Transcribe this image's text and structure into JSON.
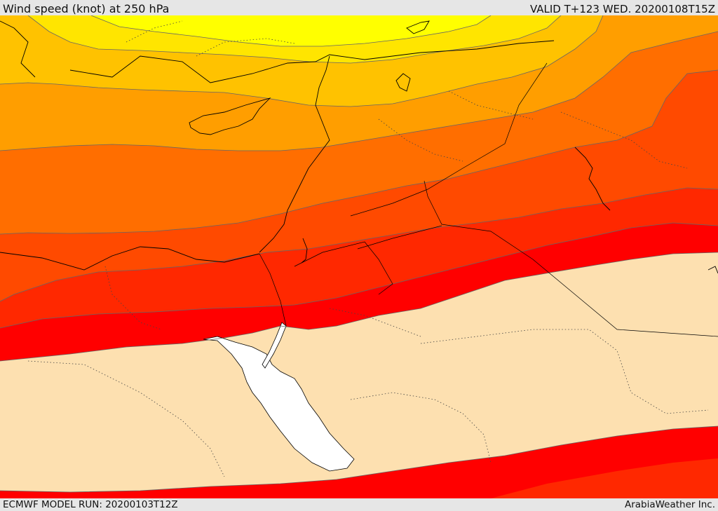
{
  "header": {
    "title": "Wind speed (knot) at 250 hPa",
    "valid": "VALID T+123 WED. 20200108T15Z"
  },
  "footer": {
    "model_run": "ECMWF MODEL RUN: 20200103T12Z",
    "credit": "ArabiaWeather Inc."
  },
  "colors": {
    "sea": "#ffffff",
    "calm": "#fde0b0",
    "band_1": "#ffff00",
    "band_2": "#ffe500",
    "band_3": "#ffc200",
    "band_4": "#ff9e00",
    "band_5": "#ff6e00",
    "band_6": "#ff4a00",
    "band_7": "#ff2800",
    "band_8": "#ff0000"
  }
}
